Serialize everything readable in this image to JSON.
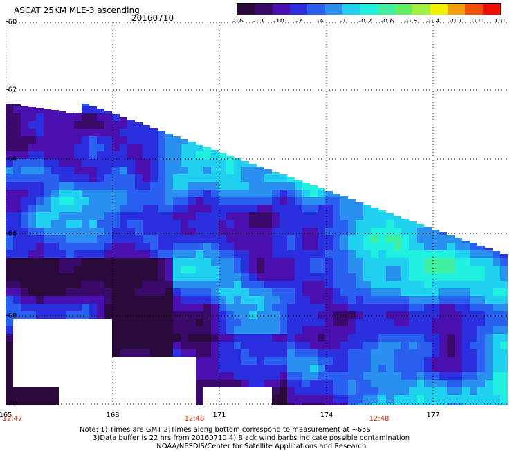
{
  "header": {
    "title": "ASCAT 25KM MLE-3 ascending",
    "date": "20160710"
  },
  "colorbar": {
    "colors": [
      "#2a0a3a",
      "#3a0a6a",
      "#4a10b0",
      "#2a30e0",
      "#2a60f0",
      "#2a90f0",
      "#20d0f0",
      "#20f0e0",
      "#40f0a0",
      "#60f060",
      "#a0f040",
      "#f0f000",
      "#f0a000",
      "#f05000",
      "#f01000"
    ],
    "labels": [
      "-16",
      "-13",
      "-10",
      "-7",
      "-4",
      "-1",
      "-0.7",
      "-0.6",
      "-0.5",
      "-0.4",
      "-0.1",
      "0.0",
      "1.0"
    ]
  },
  "axes": {
    "lat_labels": [
      "-60",
      "-62",
      "-64",
      "-66",
      "-68",
      "-70"
    ],
    "lon_labels": [
      "165",
      "168",
      "171",
      "174",
      "177"
    ],
    "time_labels": [
      "12:47",
      "12:48",
      "12:48"
    ]
  },
  "notes": [
    "Note: 1) Times are GMT 2)Times along bottom correspond to measurement at ~65S",
    "      3)Data buffer is 22 hrs from 20160710 4) Black wind barbs indicate possible contamination",
    "                                   NOAA/NESDIS/Center for Satellite Applications and Research"
  ]
}
